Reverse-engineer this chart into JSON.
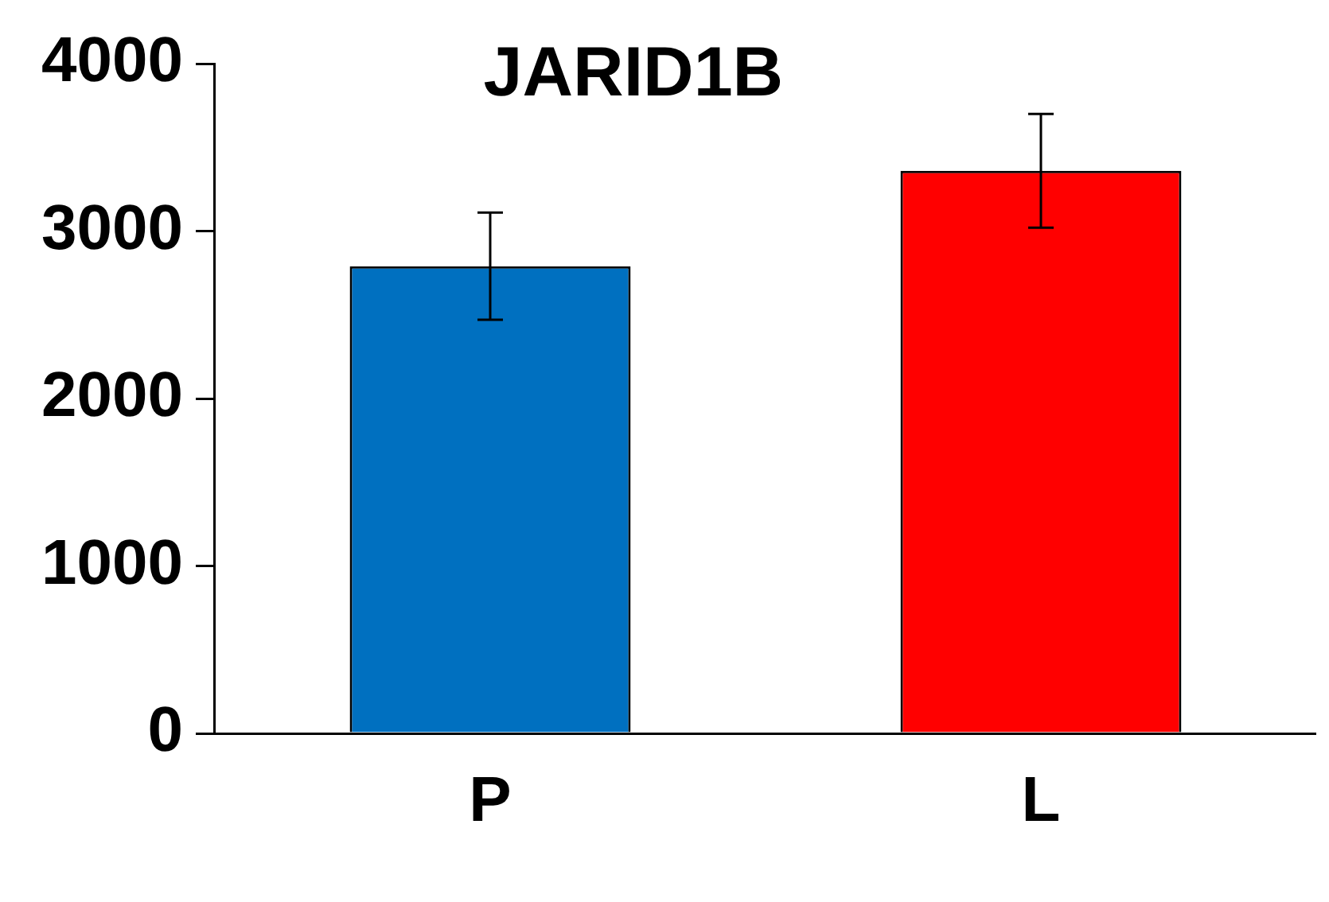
{
  "chart_data": {
    "type": "bar",
    "title": "JARID1B",
    "categories": [
      "P",
      "L"
    ],
    "values": [
      2790,
      3360
    ],
    "colors": [
      "#0070c0",
      "#ff0000"
    ],
    "errors": [
      320,
      340
    ],
    "ylim": [
      0,
      4000
    ],
    "yticks": [
      0,
      1000,
      2000,
      3000,
      4000
    ],
    "grid": false,
    "legend": false
  }
}
